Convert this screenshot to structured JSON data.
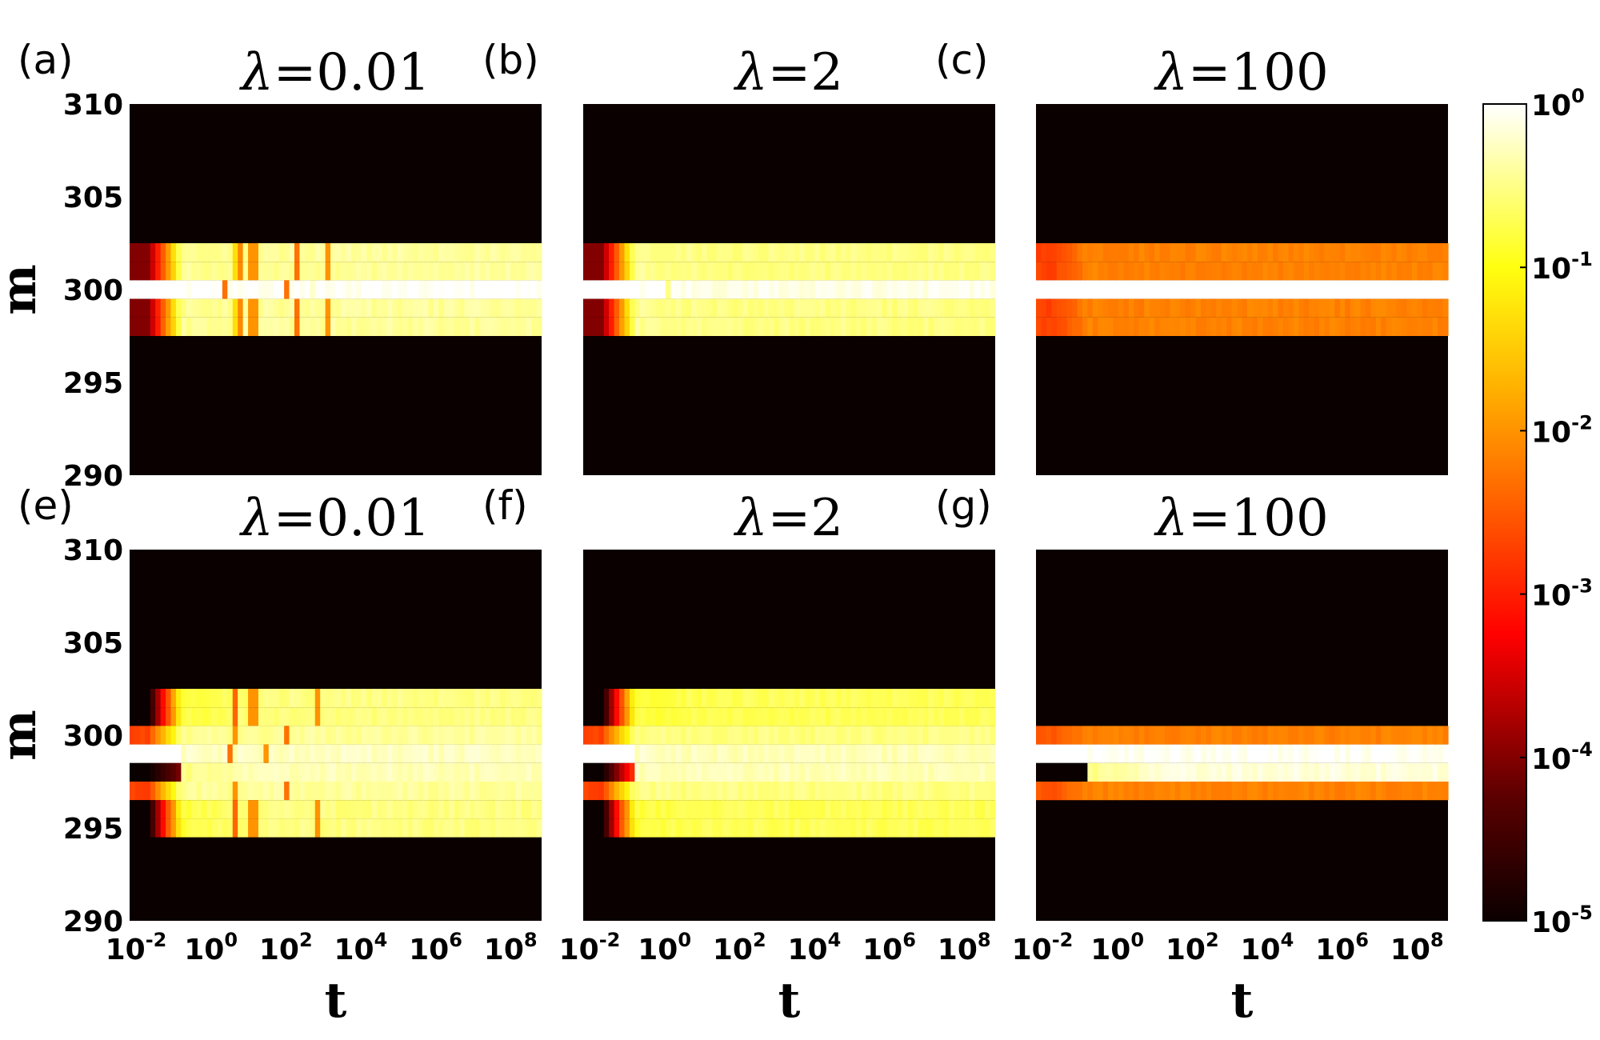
{
  "chart_data": {
    "type": "heatmap",
    "shared": {
      "xlabel": "t",
      "ylabel": "m",
      "x_scale": "log",
      "x_range": [
        0.01,
        1000000000
      ],
      "x_ticks": [
        {
          "base": "10",
          "exp": "-2"
        },
        {
          "base": "10",
          "exp": "0"
        },
        {
          "base": "10",
          "exp": "2"
        },
        {
          "base": "10",
          "exp": "4"
        },
        {
          "base": "10",
          "exp": "6"
        },
        {
          "base": "10",
          "exp": "8"
        }
      ],
      "y_range": [
        290,
        310
      ],
      "y_ticks": [
        "310",
        "305",
        "300",
        "295",
        "290"
      ],
      "colorbar": {
        "scale": "log",
        "range": [
          1e-05,
          1
        ],
        "ticks": [
          {
            "base": "10",
            "exp": "0"
          },
          {
            "base": "10",
            "exp": "-1"
          },
          {
            "base": "10",
            "exp": "-2"
          },
          {
            "base": "10",
            "exp": "-3"
          },
          {
            "base": "10",
            "exp": "-4"
          },
          {
            "base": "10",
            "exp": "-5"
          }
        ],
        "colormap": "hot"
      }
    },
    "panels": [
      {
        "label": "(a)",
        "title_symbol": "λ",
        "title_eq": "=",
        "title_value": "0.01",
        "rows": [
          {
            "m": 302,
            "t0": 0.0001,
            "t1": 0.35,
            "t2": 0.35,
            "plateau": 0.38,
            "spikes": [
              [
                6,
                0.05
              ],
              [
                10,
                0.008
              ],
              [
                20,
                0.01
              ],
              [
                300,
                0.005
              ],
              [
                2000,
                0.01
              ]
            ]
          },
          {
            "m": 301,
            "t0": 0.0001,
            "t1": 0.35,
            "t2": 0.35,
            "plateau": 0.38,
            "spikes": [
              [
                6,
                0.05
              ],
              [
                10,
                0.008
              ],
              [
                20,
                0.01
              ],
              [
                300,
                0.005
              ],
              [
                2000,
                0.01
              ]
            ]
          },
          {
            "m": 300,
            "t0": 1,
            "t1": 1,
            "t2": 1,
            "plateau": 0.95,
            "spikes": [
              [
                3,
                0.005
              ],
              [
                150,
                0.005
              ],
              [
                800,
                0.6
              ]
            ]
          },
          {
            "m": 299,
            "t0": 0.0001,
            "t1": 0.35,
            "t2": 0.35,
            "plateau": 0.38,
            "spikes": [
              [
                6,
                0.05
              ],
              [
                10,
                0.008
              ],
              [
                20,
                0.01
              ],
              [
                300,
                0.005
              ],
              [
                2000,
                0.01
              ]
            ]
          },
          {
            "m": 298,
            "t0": 0.0001,
            "t1": 0.35,
            "t2": 0.35,
            "plateau": 0.38,
            "spikes": [
              [
                6,
                0.05
              ],
              [
                10,
                0.008
              ],
              [
                20,
                0.01
              ],
              [
                300,
                0.005
              ],
              [
                2000,
                0.01
              ]
            ]
          }
        ]
      },
      {
        "label": "(b)",
        "title_symbol": "λ",
        "title_eq": "=",
        "title_value": "2",
        "rows": [
          {
            "m": 302,
            "t0": 0.0001,
            "t1": 0.35,
            "t2": 0.35,
            "plateau": 0.3,
            "spikes": []
          },
          {
            "m": 301,
            "t0": 0.0001,
            "t1": 0.35,
            "t2": 0.35,
            "plateau": 0.3,
            "spikes": []
          },
          {
            "m": 300,
            "t0": 1,
            "t1": 1,
            "t2": 1,
            "plateau": 0.8,
            "spikes": [
              [
                2,
                0.3
              ]
            ]
          },
          {
            "m": 299,
            "t0": 0.0001,
            "t1": 0.35,
            "t2": 0.35,
            "plateau": 0.3,
            "spikes": []
          },
          {
            "m": 298,
            "t0": 0.0001,
            "t1": 0.35,
            "t2": 0.35,
            "plateau": 0.3,
            "spikes": []
          }
        ]
      },
      {
        "label": "(c)",
        "title_symbol": "λ",
        "title_eq": "=",
        "title_value": "100",
        "rows": [
          {
            "m": 302,
            "t0": 0.002,
            "t1": 0.007,
            "t2": 0.007,
            "plateau": 0.007,
            "spikes": []
          },
          {
            "m": 301,
            "t0": 0.002,
            "t1": 0.007,
            "t2": 0.007,
            "plateau": 0.007,
            "spikes": []
          },
          {
            "m": 300,
            "t0": 1,
            "t1": 1,
            "t2": 1,
            "plateau": 1,
            "spikes": []
          },
          {
            "m": 299,
            "t0": 0.002,
            "t1": 0.007,
            "t2": 0.007,
            "plateau": 0.007,
            "spikes": []
          },
          {
            "m": 298,
            "t0": 0.002,
            "t1": 0.007,
            "t2": 0.007,
            "plateau": 0.007,
            "spikes": []
          }
        ]
      },
      {
        "label": "(e)",
        "title_symbol": "λ",
        "title_eq": "=",
        "title_value": "0.01",
        "rows": [
          {
            "m": 302,
            "t0": 1e-05,
            "t1": 0.15,
            "t2": 0.15,
            "plateau": 0.3,
            "spikes": [
              [
                6,
                0.004
              ],
              [
                20,
                0.01
              ],
              [
                1000,
                0.01
              ]
            ]
          },
          {
            "m": 301,
            "t0": 1e-05,
            "t1": 0.15,
            "t2": 0.15,
            "plateau": 0.3,
            "spikes": [
              [
                6,
                0.004
              ],
              [
                20,
                0.01
              ],
              [
                1000,
                0.01
              ]
            ]
          },
          {
            "m": 300,
            "t0": 0.002,
            "t1": 0.35,
            "t2": 0.35,
            "plateau": 0.38,
            "spikes": [
              [
                6,
                0.01
              ],
              [
                150,
                0.005
              ]
            ]
          },
          {
            "m": 299,
            "t0": 1,
            "t1": 1,
            "t2": 0.6,
            "plateau": 0.55,
            "spikes": [
              [
                5,
                0.005
              ],
              [
                40,
                0.01
              ]
            ]
          },
          {
            "m": 298,
            "t0": 1e-05,
            "t1": 0.0001,
            "t2": 0.3,
            "plateau": 0.5,
            "spikes": []
          },
          {
            "m": 297,
            "t0": 0.002,
            "t1": 0.35,
            "t2": 0.35,
            "plateau": 0.38,
            "spikes": [
              [
                6,
                0.01
              ],
              [
                150,
                0.005
              ]
            ]
          },
          {
            "m": 296,
            "t0": 1e-05,
            "t1": 0.15,
            "t2": 0.15,
            "plateau": 0.3,
            "spikes": [
              [
                6,
                0.004
              ],
              [
                20,
                0.01
              ],
              [
                1000,
                0.01
              ]
            ]
          },
          {
            "m": 295,
            "t0": 1e-05,
            "t1": 0.15,
            "t2": 0.15,
            "plateau": 0.3,
            "spikes": [
              [
                6,
                0.004
              ],
              [
                20,
                0.01
              ],
              [
                1000,
                0.01
              ]
            ]
          }
        ]
      },
      {
        "label": "(f)",
        "title_symbol": "λ",
        "title_eq": "=",
        "title_value": "2",
        "rows": [
          {
            "m": 302,
            "t0": 1e-05,
            "t1": 0.15,
            "t2": 0.15,
            "plateau": 0.2,
            "spikes": []
          },
          {
            "m": 301,
            "t0": 1e-05,
            "t1": 0.15,
            "t2": 0.15,
            "plateau": 0.2,
            "spikes": []
          },
          {
            "m": 300,
            "t0": 0.002,
            "t1": 0.3,
            "t2": 0.3,
            "plateau": 0.3,
            "spikes": []
          },
          {
            "m": 299,
            "t0": 1,
            "t1": 1,
            "t2": 0.6,
            "plateau": 0.5,
            "spikes": []
          },
          {
            "m": 298,
            "t0": 1e-05,
            "t1": 0.002,
            "t2": 0.5,
            "plateau": 0.5,
            "spikes": []
          },
          {
            "m": 297,
            "t0": 0.002,
            "t1": 0.3,
            "t2": 0.3,
            "plateau": 0.3,
            "spikes": []
          },
          {
            "m": 296,
            "t0": 1e-05,
            "t1": 0.15,
            "t2": 0.15,
            "plateau": 0.2,
            "spikes": []
          },
          {
            "m": 295,
            "t0": 1e-05,
            "t1": 0.15,
            "t2": 0.15,
            "plateau": 0.2,
            "spikes": []
          }
        ]
      },
      {
        "label": "(g)",
        "title_symbol": "λ",
        "title_eq": "=",
        "title_value": "100",
        "rows": [
          {
            "m": 300,
            "t0": 0.003,
            "t1": 0.007,
            "t2": 0.007,
            "plateau": 0.007,
            "spikes": []
          },
          {
            "m": 299,
            "t0": 1,
            "t1": 1,
            "t2": 1,
            "plateau": 0.9,
            "spikes": []
          },
          {
            "m": 298,
            "t0": 1e-05,
            "t1": 1e-05,
            "t2": 0.3,
            "plateau": 0.7,
            "spikes": []
          },
          {
            "m": 297,
            "t0": 0.003,
            "t1": 0.007,
            "t2": 0.007,
            "plateau": 0.007,
            "spikes": []
          }
        ]
      }
    ]
  }
}
